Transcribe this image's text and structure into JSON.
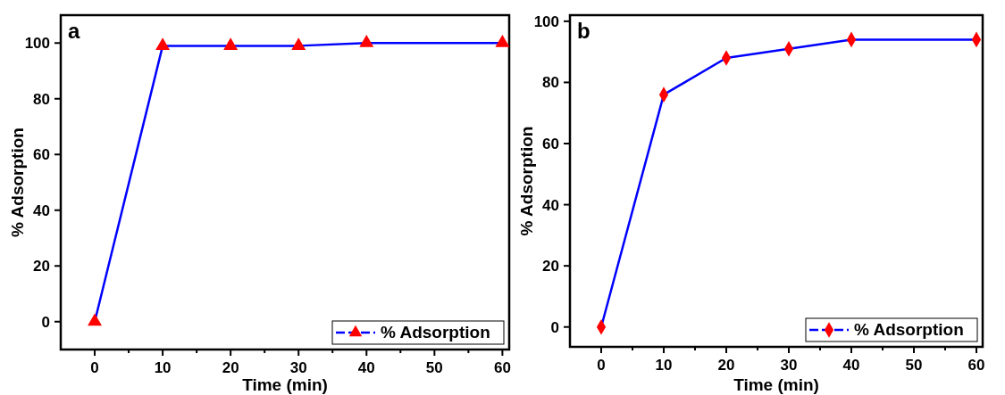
{
  "chart_data": [
    {
      "type": "line",
      "annotations": [
        "a"
      ],
      "xlabel": "Time (min)",
      "ylabel": "% Adsorption",
      "x": [
        0,
        10,
        20,
        30,
        40,
        60
      ],
      "xlim": [
        -5,
        61
      ],
      "ylim": [
        -10,
        110
      ],
      "xticks": [
        0,
        {
          "value": 5,
          "label": null
        },
        10,
        {
          "value": 15,
          "label": null
        },
        20,
        {
          "value": 25,
          "label": null
        },
        30,
        {
          "value": 35,
          "label": null
        },
        40,
        {
          "value": 45,
          "label": null
        },
        50,
        {
          "value": 55,
          "label": null
        },
        60
      ],
      "yticks": [
        0,
        20,
        40,
        60,
        80,
        100
      ],
      "marker": "triangle",
      "legend": "bottom right",
      "grid": false,
      "series": [
        {
          "name": "% Adsorption",
          "color": "#0000ff",
          "values": [
            0,
            99,
            99,
            99,
            100,
            100
          ]
        }
      ]
    },
    {
      "type": "line",
      "annotations": [
        "b"
      ],
      "xlabel": "Time (min)",
      "ylabel": "% Adsorption",
      "x": [
        0,
        10,
        20,
        30,
        40,
        60
      ],
      "xlim": [
        -5,
        61
      ],
      "ylim": [
        -6.5,
        102
      ],
      "xticks": [
        0,
        {
          "value": 5,
          "label": null
        },
        10,
        {
          "value": 15,
          "label": null
        },
        20,
        {
          "value": 25,
          "label": null
        },
        30,
        {
          "value": 35,
          "label": null
        },
        40,
        {
          "value": 45,
          "label": null
        },
        50,
        {
          "value": 55,
          "label": null
        },
        60
      ],
      "yticks": [
        0,
        20,
        40,
        60,
        80,
        100
      ],
      "marker": "diamond",
      "legend": "bottom right",
      "grid": false,
      "series": [
        {
          "name": "% Adsorption",
          "color": "#0000ff",
          "values": [
            0,
            76,
            88,
            91,
            94,
            94
          ]
        }
      ]
    }
  ]
}
